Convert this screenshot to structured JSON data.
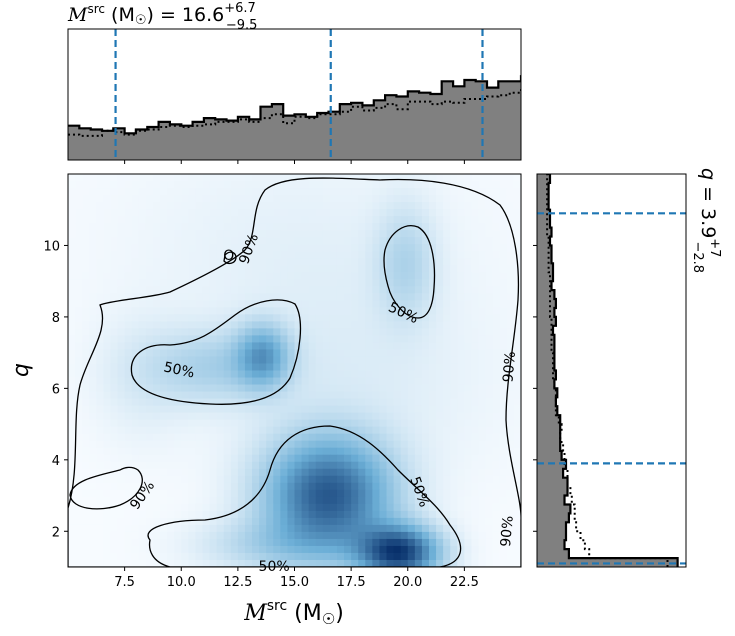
{
  "chart_data": {
    "type": "corner",
    "top_title": {
      "prefix": "M",
      "sup": "src",
      "unit": " (M",
      "unit_sub": "☉",
      "unit_close": ")",
      "median": " = 16.6",
      "plus": "+6.7",
      "minus": "−9.5"
    },
    "right_title": {
      "symbol": "q",
      "median": " = 3.9",
      "plus": "+7",
      "minus": "−2.8"
    },
    "xlabel": {
      "prefix": "M",
      "sup": "src",
      "unit": " (M",
      "unit_sub": "☉",
      "unit_close": ")"
    },
    "ylabel": "q",
    "xlim": [
      5,
      25
    ],
    "ylim": [
      1,
      12
    ],
    "xticks": [
      "7.5",
      "10.0",
      "12.5",
      "15.0",
      "17.5",
      "20.0",
      "22.5"
    ],
    "xtick_values": [
      7.5,
      10,
      12.5,
      15,
      17.5,
      20,
      22.5
    ],
    "yticks": [
      "2",
      "4",
      "6",
      "8",
      "10"
    ],
    "ytick_values": [
      2,
      4,
      6,
      8,
      10
    ],
    "chirp_quantiles": [
      7.1,
      16.6,
      23.3
    ],
    "q_quantiles": [
      1.1,
      3.9,
      10.9
    ],
    "contour_labels": [
      {
        "text": "90%",
        "x": 8.3,
        "y": 3.0,
        "rotate": -55
      },
      {
        "text": "90%",
        "x": 13.0,
        "y": 9.9,
        "rotate": -70
      },
      {
        "text": "O",
        "x": 12.1,
        "y": 9.7,
        "rotate": 0
      },
      {
        "text": "90%",
        "x": 24.5,
        "y": 6.6,
        "rotate": -85
      },
      {
        "text": "90%",
        "x": 24.4,
        "y": 2.0,
        "rotate": -85
      },
      {
        "text": "50%",
        "x": 9.9,
        "y": 6.5,
        "rotate": 12
      },
      {
        "text": "50%",
        "x": 19.8,
        "y": 8.1,
        "rotate": 25
      },
      {
        "text": "50%",
        "x": 20.5,
        "y": 3.1,
        "rotate": 70
      },
      {
        "text": "50%",
        "x": 14.1,
        "y": 1.0,
        "rotate": 0
      }
    ],
    "chirp_hist": {
      "bin_width": 0.5,
      "bin_start": 5,
      "posterior": [
        0.27,
        0.25,
        0.24,
        0.23,
        0.25,
        0.21,
        0.24,
        0.26,
        0.3,
        0.28,
        0.27,
        0.3,
        0.33,
        0.32,
        0.31,
        0.34,
        0.32,
        0.42,
        0.44,
        0.35,
        0.36,
        0.34,
        0.37,
        0.38,
        0.44,
        0.45,
        0.43,
        0.47,
        0.51,
        0.5,
        0.54,
        0.53,
        0.52,
        0.62,
        0.58,
        0.63,
        0.62,
        0.57,
        0.62,
        0.62,
        0.66,
        0.64,
        0.65,
        0.64,
        0.85,
        0.84,
        0.87,
        0.93,
        0.92,
        0.99,
        0.92,
        0.92,
        0.81,
        0.82,
        0.83,
        0.82,
        0.83,
        0.83,
        0.8,
        0.83,
        0.8,
        0.8,
        0.8,
        0.96,
        0.96,
        0.87,
        0.96,
        0.93,
        0.9,
        0.91,
        0.6,
        0.58,
        0.57,
        0.56,
        0.55,
        0.48,
        0.48,
        0.42,
        0.44,
        0.42,
        0.42,
        0.42,
        0.36,
        0.33,
        0.3,
        0.31,
        0.3,
        0.28,
        0.25,
        0.23
      ],
      "prior": [
        0.2,
        0.19,
        0.19,
        0.23,
        0.22,
        0.2,
        0.23,
        0.24,
        0.26,
        0.27,
        0.26,
        0.27,
        0.28,
        0.3,
        0.3,
        0.32,
        0.3,
        0.33,
        0.36,
        0.29,
        0.34,
        0.33,
        0.36,
        0.36,
        0.38,
        0.42,
        0.39,
        0.41,
        0.44,
        0.4,
        0.46,
        0.46,
        0.44,
        0.46,
        0.45,
        0.48,
        0.48,
        0.5,
        0.51,
        0.53,
        0.55,
        0.56,
        0.56,
        0.56,
        0.56,
        0.57,
        0.59,
        0.59,
        0.61,
        0.61,
        0.62,
        0.62,
        0.62,
        0.64,
        0.64,
        0.66,
        0.66,
        0.68,
        0.64,
        0.68,
        0.68,
        0.68,
        0.69,
        0.7,
        0.69,
        0.7,
        0.7,
        0.71,
        0.7,
        0.72,
        0.72,
        0.72,
        0.72,
        0.73,
        0.69,
        0.7,
        0.71,
        0.75,
        0.74,
        0.72,
        0.73,
        0.73,
        0.79,
        0.79,
        0.78,
        0.8,
        0.82,
        0.79,
        0.84,
        0.83
      ]
    },
    "q_hist": {
      "bin_width": 0.25,
      "bin_start": 1,
      "posterior": [
        0.97,
        0.22,
        0.19,
        0.2,
        0.2,
        0.22,
        0.23,
        0.19,
        0.21,
        0.21,
        0.18,
        0.2,
        0.17,
        0.16,
        0.16,
        0.16,
        0.16,
        0.14,
        0.13,
        0.14,
        0.12,
        0.13,
        0.12,
        0.12,
        0.12,
        0.12,
        0.11,
        0.13,
        0.12,
        0.13,
        0.12,
        0.1,
        0.11,
        0.11,
        0.1,
        0.1,
        0.09,
        0.1,
        0.09,
        0.09,
        0.08,
        0.08,
        0.08,
        0.09,
        0.08,
        0.08,
        0.08,
        0.07,
        0.08,
        0.08,
        0.08,
        0.07,
        0.08,
        0.08,
        0.09,
        0.08,
        0.08,
        0.08,
        0.08,
        0.08,
        0.09,
        0.08,
        0.08,
        0.08,
        0.08,
        0.07,
        0.07,
        0.07,
        0.06,
        0.07,
        0.07,
        0.06,
        0.06,
        0.06,
        0.06,
        0.06,
        0.05,
        0.06,
        0.05,
        0.05,
        0.05,
        0.05,
        0.05,
        0.05,
        0.05,
        0.05,
        0.04,
        0.05,
        0.05,
        0.04,
        0.04,
        0.04
      ],
      "prior": [
        0.9,
        0.36,
        0.33,
        0.3,
        0.27,
        0.26,
        0.26,
        0.24,
        0.23,
        0.21,
        0.21,
        0.19,
        0.19,
        0.18,
        0.16,
        0.17,
        0.15,
        0.13,
        0.13,
        0.13,
        0.12,
        0.11,
        0.11,
        0.11,
        0.1,
        0.1,
        0.1,
        0.1,
        0.09,
        0.09,
        0.09,
        0.09,
        0.09,
        0.08,
        0.08,
        0.08,
        0.08,
        0.07,
        0.07,
        0.07,
        0.07,
        0.07,
        0.07,
        0.07,
        0.06,
        0.06,
        0.06,
        0.06,
        0.06,
        0.06,
        0.06,
        0.05,
        0.05,
        0.05,
        0.05,
        0.05,
        0.05,
        0.05,
        0.05,
        0.05,
        0.05,
        0.05,
        0.05,
        0.05,
        0.04,
        0.04,
        0.04,
        0.04,
        0.04,
        0.04,
        0.04,
        0.04,
        0.04,
        0.04,
        0.04,
        0.04,
        0.04,
        0.04,
        0.04,
        0.04,
        0.04,
        0.04,
        0.04,
        0.04,
        0.04,
        0.04,
        0.04,
        0.04,
        0.04,
        0.04,
        0.04,
        0.04
      ]
    },
    "density_blobs": [
      {
        "x": 16.5,
        "y": 3.0,
        "sx": 1.9,
        "sy": 1.1,
        "w": 1.0
      },
      {
        "x": 19.6,
        "y": 1.4,
        "sx": 1.2,
        "sy": 0.5,
        "w": 1.15
      },
      {
        "x": 13.6,
        "y": 6.9,
        "sx": 0.8,
        "sy": 0.6,
        "w": 0.55
      },
      {
        "x": 11.5,
        "y": 6.6,
        "sx": 2.0,
        "sy": 0.7,
        "w": 0.25
      },
      {
        "x": 19.9,
        "y": 9.5,
        "sx": 0.9,
        "sy": 1.1,
        "w": 0.22
      },
      {
        "x": 14.0,
        "y": 1.6,
        "sx": 2.2,
        "sy": 0.5,
        "w": 0.22
      },
      {
        "x": 8.3,
        "y": 6.3,
        "sx": 1.5,
        "sy": 1.2,
        "w": 0.08
      },
      {
        "x": 17.8,
        "y": 6.2,
        "sx": 4.0,
        "sy": 2.0,
        "w": 0.07
      },
      {
        "x": 15.0,
        "y": 10.0,
        "sx": 5.0,
        "sy": 2.0,
        "w": 0.05
      }
    ],
    "colors": {
      "posterior_fill": "#808080",
      "quantile_line": "#1f77b4",
      "density_dark": "#08306b",
      "density_light": "#f7fbff"
    }
  }
}
